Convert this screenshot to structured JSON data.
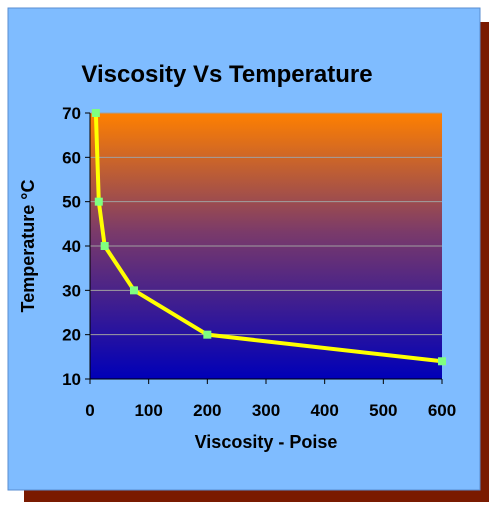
{
  "chart_data": {
    "type": "line",
    "title": "Viscosity Vs Temperature",
    "xlabel": "Viscosity - Poise",
    "ylabel": "Temperature °C",
    "xlim": [
      0,
      600
    ],
    "ylim": [
      10,
      70
    ],
    "x_ticks": [
      "0",
      "100",
      "200",
      "300",
      "400",
      "500",
      "600"
    ],
    "y_ticks": [
      "10",
      "20",
      "30",
      "40",
      "50",
      "60",
      "70"
    ],
    "grid": true,
    "legend": "none",
    "series": [
      {
        "points": [
          {
            "x": 10,
            "y": 70
          },
          {
            "x": 15,
            "y": 50
          },
          {
            "x": 25,
            "y": 40
          },
          {
            "x": 75,
            "y": 30
          },
          {
            "x": 200,
            "y": 20
          },
          {
            "x": 600,
            "y": 14
          }
        ]
      }
    ],
    "colors": {
      "frame_background": "#7fbcff",
      "frame_shadow": "#7a1a00",
      "plot_top": "#ff8000",
      "plot_bottom": "#0000b8",
      "line": "#ffff00",
      "marker": "#80ff80",
      "text": "#000000",
      "gridline": "#a0a0a0"
    }
  }
}
